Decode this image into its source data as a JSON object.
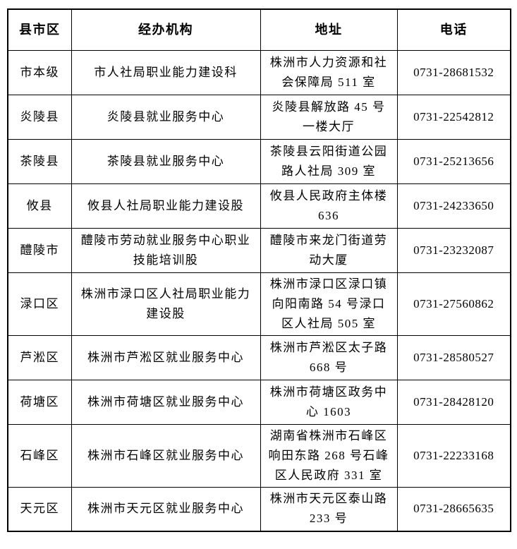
{
  "colors": {
    "border": "#000000",
    "text": "#000000",
    "background": "#ffffff"
  },
  "table": {
    "headers": [
      "县市区",
      "经办机构",
      "地址",
      "电话"
    ],
    "rows": [
      {
        "district": "市本级",
        "agency": "市人社局职业能力建设科",
        "address": "株洲市人力资源和社会保障局 511 室",
        "phone": "0731-28681532"
      },
      {
        "district": "炎陵县",
        "agency": "炎陵县就业服务中心",
        "address": "炎陵县解放路 45 号一楼大厅",
        "phone": "0731-22542812"
      },
      {
        "district": "茶陵县",
        "agency": "茶陵县就业服务中心",
        "address": "茶陵县云阳街道公园路人社局 309 室",
        "phone": "0731-25213656"
      },
      {
        "district": "攸县",
        "agency": "攸县人社局职业能力建设股",
        "address": "攸县人民政府主体楼 636",
        "phone": "0731-24233650"
      },
      {
        "district": "醴陵市",
        "agency": "醴陵市劳动就业服务中心职业技能培训股",
        "address": "醴陵市来龙门街道劳动大厦",
        "phone": "0731-23232087"
      },
      {
        "district": "渌口区",
        "agency": "株洲市渌口区人社局职业能力建设股",
        "address": "株洲市渌口区渌口镇向阳南路 54 号渌口区人社局 505 室",
        "phone": "0731-27560862"
      },
      {
        "district": "芦淞区",
        "agency": "株洲市芦淞区就业服务中心",
        "address": "株洲市芦淞区太子路 668 号",
        "phone": "0731-28580527"
      },
      {
        "district": "荷塘区",
        "agency": "株洲市荷塘区就业服务中心",
        "address": "株洲市荷塘区政务中心 1603",
        "phone": "0731-28428120"
      },
      {
        "district": "石峰区",
        "agency": "株洲市石峰区就业服务中心",
        "address": "湖南省株洲市石峰区响田东路 268 号石峰区人民政府 331 室",
        "phone": "0731-22233168"
      },
      {
        "district": "天元区",
        "agency": "株洲市天元区就业服务中心",
        "address": "株洲市天元区泰山路 233 号",
        "phone": "0731-28665635"
      }
    ]
  }
}
